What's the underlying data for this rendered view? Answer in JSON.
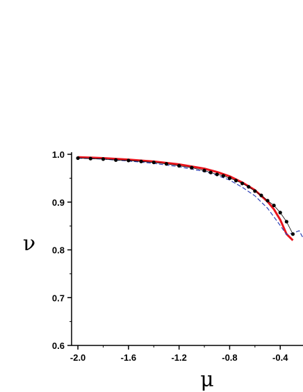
{
  "chart_data": {
    "type": "line",
    "title": "",
    "xlabel": "μ",
    "ylabel": "ν",
    "xlim": [
      -2.05,
      -0.22
    ],
    "ylim": [
      0.6,
      1.0
    ],
    "x_ticks": [
      -2.0,
      -1.6,
      -1.2,
      -0.8,
      -0.4
    ],
    "x_tick_labels": [
      "-2.0",
      "-1.6",
      "-1.2",
      "-0.8",
      "-0.4"
    ],
    "y_ticks": [
      0.6,
      0.7,
      0.8,
      0.9,
      1.0
    ],
    "y_tick_labels": [
      "0.6",
      "0.7",
      "0.8",
      "0.9",
      "1.0"
    ],
    "grid": false,
    "series": [
      {
        "style": "solid-thick",
        "color": "#e8141c",
        "x": [
          -2.0,
          -1.8,
          -1.6,
          -1.4,
          -1.2,
          -1.0,
          -0.9,
          -0.8,
          -0.7,
          -0.6,
          -0.5,
          -0.45,
          -0.4,
          -0.35,
          -0.3
        ],
        "y": [
          0.994,
          0.992,
          0.989,
          0.985,
          0.979,
          0.97,
          0.963,
          0.954,
          0.941,
          0.925,
          0.901,
          0.885,
          0.863,
          0.833,
          0.82
        ]
      },
      {
        "style": "dashed",
        "color": "#2b3fb5",
        "x": [
          -2.0,
          -1.8,
          -1.6,
          -1.4,
          -1.2,
          -1.0,
          -0.9,
          -0.8,
          -0.7,
          -0.6,
          -0.5,
          -0.4,
          -0.35,
          -0.3,
          -0.25,
          -0.22
        ],
        "y": [
          0.992,
          0.99,
          0.986,
          0.981,
          0.974,
          0.964,
          0.956,
          0.946,
          0.931,
          0.913,
          0.887,
          0.851,
          0.832,
          0.835,
          0.84,
          0.825
        ]
      },
      {
        "style": "markers",
        "color": "#000000",
        "x": [
          -2.0,
          -1.9,
          -1.8,
          -1.7,
          -1.6,
          -1.5,
          -1.4,
          -1.3,
          -1.2,
          -1.1,
          -1.0,
          -0.95,
          -0.9,
          -0.85,
          -0.8,
          -0.75,
          -0.7,
          -0.65,
          -0.6,
          -0.55,
          -0.5,
          -0.45,
          -0.4,
          -0.35,
          -0.3
        ],
        "y": [
          0.992,
          0.991,
          0.99,
          0.988,
          0.987,
          0.985,
          0.983,
          0.98,
          0.976,
          0.972,
          0.966,
          0.962,
          0.958,
          0.955,
          0.95,
          0.945,
          0.939,
          0.932,
          0.923,
          0.914,
          0.903,
          0.893,
          0.878,
          0.859,
          0.833
        ]
      }
    ]
  }
}
